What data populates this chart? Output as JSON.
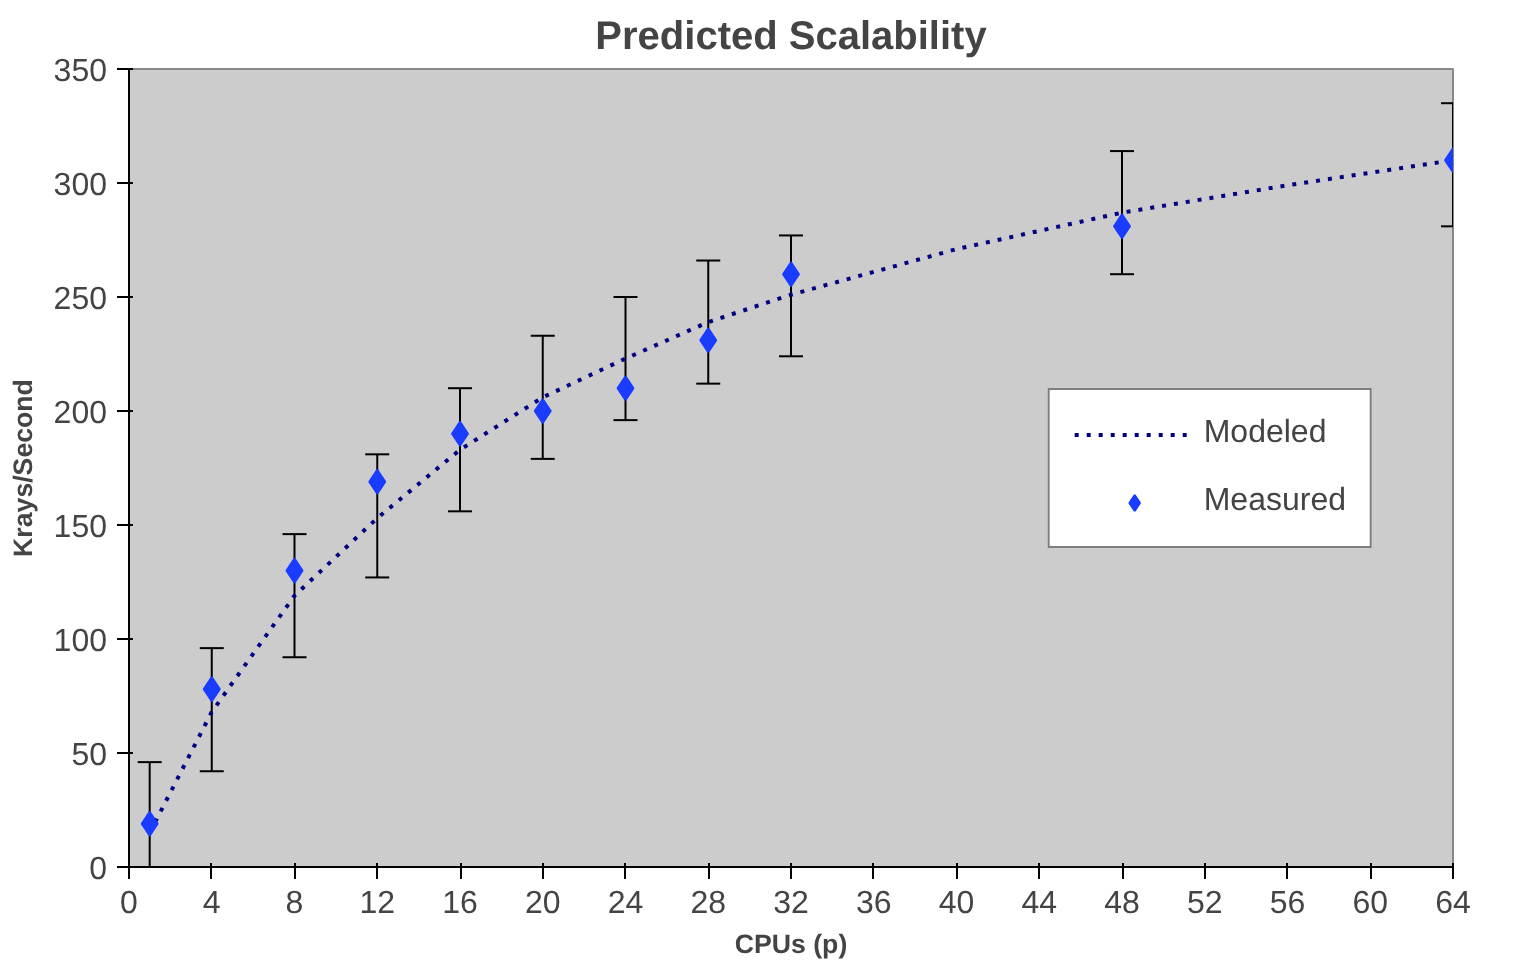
{
  "chart_data": {
    "type": "scatter",
    "title": "Predicted Scalability",
    "xlabel": "CPUs (p)",
    "ylabel": "Krays/Second",
    "xlim": [
      0,
      64
    ],
    "xticks": [
      0,
      4,
      8,
      12,
      16,
      20,
      24,
      28,
      32,
      36,
      40,
      44,
      48,
      52,
      56,
      60,
      64
    ],
    "ylim": [
      0,
      350
    ],
    "yticks": [
      0,
      50,
      100,
      150,
      200,
      250,
      300,
      350
    ],
    "grid": false,
    "legend": "right",
    "series": [
      {
        "name": "Modeled",
        "type": "line",
        "line_style": "dotted",
        "marker": "none",
        "color": "#000080",
        "x": [
          1,
          4,
          8,
          12,
          16,
          20,
          24,
          28,
          32,
          40,
          48,
          56,
          64
        ],
        "values": [
          15,
          68,
          119,
          153,
          183,
          206,
          223,
          239,
          251,
          271,
          287,
          299,
          310
        ]
      },
      {
        "name": "Measured",
        "marker": "diamond",
        "color": "#1a3cff",
        "x": [
          1,
          4,
          8,
          12,
          16,
          20,
          24,
          28,
          32,
          48,
          64
        ],
        "values": [
          19,
          78,
          130,
          169,
          190,
          200,
          210,
          231,
          260,
          281,
          310
        ],
        "errors": [
          [
            0,
            46
          ],
          [
            42,
            96
          ],
          [
            92,
            146
          ],
          [
            127,
            181
          ],
          [
            156,
            210
          ],
          [
            179,
            233
          ],
          [
            196,
            250
          ],
          [
            212,
            266
          ],
          [
            224,
            277
          ],
          [
            260,
            314
          ],
          [
            281,
            335
          ]
        ]
      }
    ]
  }
}
